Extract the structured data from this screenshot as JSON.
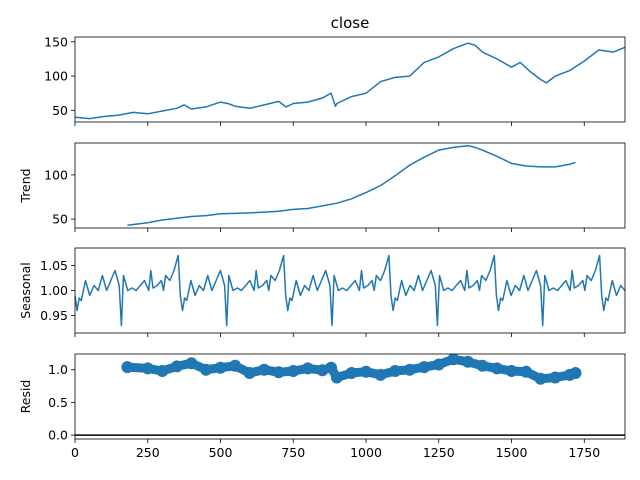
{
  "chart_data": {
    "type": "line",
    "title": "close",
    "xlim": [
      0,
      1890
    ],
    "x_ticks": [
      0,
      250,
      500,
      750,
      1000,
      1250,
      1500,
      1750
    ],
    "color": "#1f77b4",
    "panels": [
      {
        "name": "observed",
        "ylabel": "",
        "ylim": [
          33,
          157
        ],
        "y_ticks": [
          50,
          100,
          150
        ],
        "tick_labels": [
          "50",
          "100",
          "150"
        ],
        "style": "line",
        "x": [
          0,
          50,
          100,
          150,
          200,
          250,
          300,
          350,
          375,
          400,
          450,
          500,
          525,
          550,
          600,
          650,
          700,
          725,
          750,
          800,
          850,
          880,
          895,
          900,
          950,
          1000,
          1050,
          1100,
          1150,
          1200,
          1250,
          1300,
          1350,
          1375,
          1400,
          1450,
          1500,
          1530,
          1560,
          1600,
          1620,
          1650,
          1700,
          1750,
          1800,
          1850,
          1890
        ],
        "values": [
          40,
          38,
          41,
          43,
          47,
          45,
          49,
          53,
          58,
          52,
          55,
          62,
          60,
          56,
          53,
          58,
          63,
          55,
          60,
          62,
          68,
          75,
          56,
          60,
          70,
          75,
          92,
          98,
          100,
          120,
          128,
          140,
          148,
          145,
          135,
          125,
          113,
          120,
          108,
          95,
          90,
          100,
          108,
          122,
          138,
          135,
          142
        ]
      },
      {
        "name": "trend",
        "ylabel": "Trend",
        "ylim": [
          40,
          136
        ],
        "y_ticks": [
          50,
          100
        ],
        "tick_labels": [
          "50",
          "100"
        ],
        "style": "line",
        "x": [
          180,
          250,
          300,
          350,
          400,
          450,
          500,
          550,
          600,
          650,
          700,
          750,
          800,
          850,
          900,
          950,
          1000,
          1050,
          1100,
          1150,
          1200,
          1250,
          1300,
          1350,
          1375,
          1400,
          1450,
          1500,
          1550,
          1600,
          1650,
          1700,
          1720
        ],
        "values": [
          43,
          46,
          49,
          51,
          53,
          54,
          56,
          56.5,
          57,
          58,
          59,
          61,
          62,
          65,
          68,
          73,
          80,
          88,
          99,
          111,
          120,
          128,
          131,
          133,
          131,
          128,
          121,
          113,
          110,
          109,
          109,
          112,
          114
        ]
      },
      {
        "name": "seasonal",
        "ylabel": "Seasonal",
        "ylim": [
          0.915,
          1.085
        ],
        "y_ticks": [
          0.95,
          1.0,
          1.05
        ],
        "tick_labels": [
          "0.95",
          "1.00",
          "1.05"
        ],
        "style": "line",
        "period": 362,
        "one_cycle": {
          "phase": [
            0,
            0.02,
            0.04,
            0.06,
            0.08,
            0.1,
            0.14,
            0.18,
            0.22,
            0.26,
            0.3,
            0.34,
            0.38,
            0.42,
            0.44,
            0.46,
            0.5,
            0.54,
            0.58,
            0.62,
            0.66,
            0.7,
            0.72,
            0.74,
            0.78,
            0.82,
            0.84,
            0.86,
            0.9,
            0.94,
            0.98,
            1.0
          ],
          "values": [
            0.99,
            0.96,
            0.985,
            0.98,
            1.0,
            1.02,
            0.99,
            1.01,
            1.0,
            1.03,
            1.0,
            1.02,
            1.04,
            1.01,
            0.93,
            1.03,
            1.0,
            1.005,
            1.0,
            1.01,
            1.02,
            1.0,
            1.04,
            1.005,
            1.01,
            1.02,
            1.0,
            1.03,
            1.02,
            1.04,
            1.07,
            0.99
          ]
        }
      },
      {
        "name": "resid",
        "ylabel": "Resid",
        "ylim": [
          -0.06,
          1.24
        ],
        "y_ticks": [
          0.0,
          0.5,
          1.0
        ],
        "tick_labels": [
          "0.0",
          "0.5",
          "1.0"
        ],
        "style": "scatter",
        "zero_line": 0,
        "x": [
          180,
          250,
          300,
          350,
          400,
          450,
          500,
          550,
          600,
          650,
          700,
          750,
          800,
          850,
          880,
          900,
          950,
          1000,
          1050,
          1100,
          1150,
          1200,
          1250,
          1300,
          1350,
          1400,
          1450,
          1500,
          1550,
          1600,
          1650,
          1700,
          1720
        ],
        "values": [
          1.04,
          1.02,
          0.98,
          1.05,
          1.1,
          1.0,
          1.03,
          1.06,
          0.95,
          1.0,
          0.96,
          0.98,
          1.02,
          0.99,
          1.03,
          0.88,
          0.95,
          0.97,
          0.92,
          0.98,
          1.0,
          1.04,
          1.08,
          1.16,
          1.12,
          1.06,
          1.02,
          0.98,
          0.97,
          0.86,
          0.88,
          0.92,
          0.95
        ]
      }
    ]
  }
}
